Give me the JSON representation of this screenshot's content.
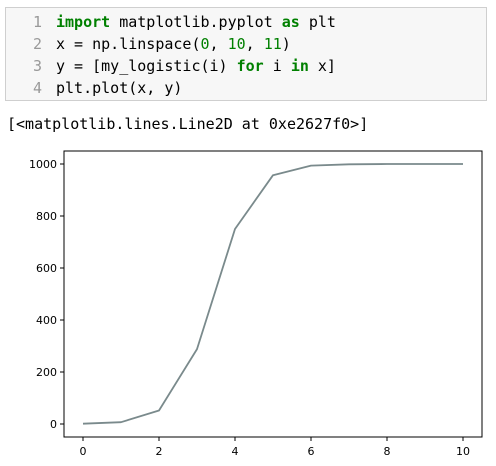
{
  "code_cell": {
    "lines": [
      {
        "number": "1",
        "parts": [
          {
            "text": "import",
            "kind": "kw"
          },
          {
            "text": " matplotlib.pyplot ",
            "kind": "plain"
          },
          {
            "text": "as",
            "kind": "kw"
          },
          {
            "text": " plt",
            "kind": "plain"
          }
        ]
      },
      {
        "number": "2",
        "parts": [
          {
            "text": "x = np.linspace(",
            "kind": "plain"
          },
          {
            "text": "0",
            "kind": "num"
          },
          {
            "text": ", ",
            "kind": "plain"
          },
          {
            "text": "10",
            "kind": "num"
          },
          {
            "text": ", ",
            "kind": "plain"
          },
          {
            "text": "11",
            "kind": "num"
          },
          {
            "text": ")",
            "kind": "plain"
          }
        ]
      },
      {
        "number": "3",
        "parts": [
          {
            "text": "y = [my_logistic(i) ",
            "kind": "plain"
          },
          {
            "text": "for",
            "kind": "kw"
          },
          {
            "text": " i ",
            "kind": "plain"
          },
          {
            "text": "in",
            "kind": "kw"
          },
          {
            "text": " x]",
            "kind": "plain"
          }
        ]
      },
      {
        "number": "4",
        "parts": [
          {
            "text": "plt.plot(x, y)",
            "kind": "plain"
          }
        ]
      }
    ]
  },
  "output_text": "[<matplotlib.lines.Line2D at 0xe2627f0>]",
  "chart_data": {
    "type": "line",
    "title": "",
    "xlabel": "",
    "ylabel": "",
    "xlim": [
      -0.5,
      10.5
    ],
    "ylim": [
      -50,
      1050
    ],
    "x_ticks": [
      0,
      2,
      4,
      6,
      8,
      10
    ],
    "y_ticks": [
      0,
      200,
      400,
      600,
      800,
      1000
    ],
    "grid": false,
    "line_color": "#7a8a8c",
    "x": [
      0,
      1,
      2,
      3,
      4,
      5,
      6,
      7,
      8,
      9,
      10
    ],
    "series": [
      {
        "values": [
          1,
          7,
          52,
          288,
          750,
          957,
          994,
          999,
          1000,
          1000,
          1000
        ]
      }
    ]
  }
}
